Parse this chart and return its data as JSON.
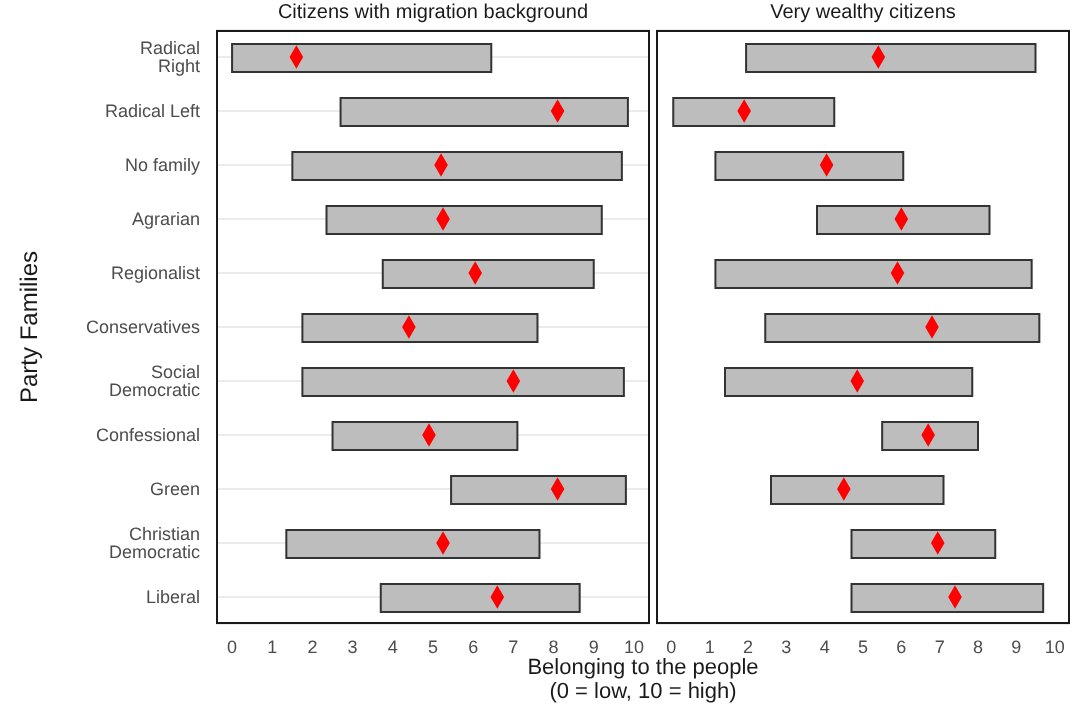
{
  "chart_data": [
    {
      "type": "bar",
      "title": "Citizens with migration background",
      "xlabel": "Belonging to the people\n(0 = low, 10 = high)",
      "ylabel": "Party Families",
      "orientation": "horizontal",
      "categories": [
        "Radical Right",
        "Radical Left",
        "No family",
        "Agrarian",
        "Regionalist",
        "Conservatives",
        "Social Democratic",
        "Confessional",
        "Green",
        "Christian Democratic",
        "Liberal"
      ],
      "series": [
        {
          "color": "#bdbdbd",
          "base": [
            0,
            2.7,
            1.5,
            2.35,
            3.75,
            1.75,
            1.75,
            2.5,
            5.45,
            1.35,
            3.7
          ],
          "values": [
            6.45,
            7.15,
            8.2,
            6.85,
            5.25,
            5.85,
            8.0,
            4.6,
            4.35,
            6.3,
            4.95
          ]
        },
        {
          "type": "scatter",
          "color": "#ff0000",
          "values": [
            1.6,
            8.1,
            5.2,
            5.25,
            6.05,
            4.4,
            7.0,
            4.9,
            8.1,
            5.25,
            6.6
          ]
        }
      ],
      "xlim": [
        -0.4,
        10.4
      ],
      "xticks": [
        0,
        1,
        2,
        3,
        4,
        5,
        6,
        7,
        8,
        9,
        10
      ],
      "grid": "y",
      "marker": "diamond"
    },
    {
      "type": "bar",
      "title": "Very wealthy citizens",
      "orientation": "horizontal",
      "tick_labels": "x",
      "series": [
        {
          "color": "#bdbdbd",
          "base": [
            1.95,
            0.05,
            1.15,
            3.8,
            1.15,
            2.45,
            1.4,
            5.5,
            2.6,
            4.7,
            4.7
          ],
          "values": [
            7.55,
            4.2,
            4.9,
            4.5,
            8.25,
            7.15,
            6.45,
            2.5,
            4.5,
            3.75,
            5.0
          ]
        },
        {
          "type": "scatter",
          "color": "#ff0000",
          "values": [
            5.4,
            1.9,
            4.05,
            6.0,
            5.9,
            6.8,
            4.85,
            6.7,
            4.5,
            6.95,
            7.4
          ]
        }
      ],
      "xlim": [
        -0.4,
        10.4
      ],
      "xticks": [
        0,
        1,
        2,
        3,
        4,
        5,
        6,
        7,
        8,
        9,
        10
      ],
      "grid": "y",
      "marker": "diamond"
    }
  ]
}
